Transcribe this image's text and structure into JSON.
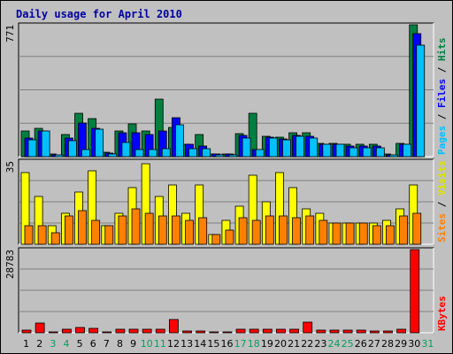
{
  "chart_data": {
    "type": "bar",
    "title": "Daily usage for April 2010",
    "days": [
      "1",
      "2",
      "3",
      "4",
      "5",
      "6",
      "7",
      "8",
      "9",
      "10",
      "11",
      "12",
      "13",
      "14",
      "15",
      "16",
      "17",
      "18",
      "19",
      "20",
      "21",
      "22",
      "23",
      "24",
      "25",
      "26",
      "27",
      "28",
      "29",
      "30",
      "31"
    ],
    "weekend_days": [
      "3",
      "4",
      "10",
      "11",
      "17",
      "18",
      "24",
      "25",
      "31"
    ],
    "panels": [
      {
        "name": "hits-files-pages",
        "scale_max_label": "771",
        "scale_max": 771,
        "right_label": [
          "Pages",
          "Files",
          "Hits"
        ],
        "series": [
          {
            "name": "Hits",
            "color": "#008040",
            "values": [
              150,
              166,
              18,
              128,
              252,
              225,
              25,
              150,
              191,
              150,
              338,
              170,
              75,
              130,
              15,
              15,
              135,
              254,
              120,
              115,
              140,
              140,
              80,
              80,
              70,
              70,
              70,
              18,
              80,
              771
            ]
          },
          {
            "name": "Files",
            "color": "#0000ff",
            "values": [
              110,
              152,
              10,
              110,
              199,
              165,
              20,
              140,
              140,
              128,
              150,
              230,
              70,
              60,
              15,
              15,
              125,
              40,
              115,
              105,
              125,
              120,
              75,
              75,
              60,
              60,
              60,
              10,
              75,
              720
            ]
          },
          {
            "name": "Pages",
            "color": "#00c0ff",
            "values": [
              100,
              152,
              10,
              95,
              40,
              160,
              15,
              85,
              40,
              40,
              48,
              185,
              48,
              48,
              12,
              12,
              110,
              40,
              110,
              100,
              120,
              110,
              75,
              75,
              50,
              50,
              50,
              10,
              70,
              650
            ]
          }
        ]
      },
      {
        "name": "visits-sites",
        "scale_max_label": "35",
        "scale_max": 35,
        "right_label": [
          "Sites",
          "Visits"
        ],
        "series": [
          {
            "name": "Visits",
            "color": "#ffff00",
            "values": [
              30,
              20,
              8,
              13,
              22,
              31,
              8,
              13,
              24,
              34,
              20,
              25,
              13,
              25,
              4,
              10,
              16,
              29,
              18,
              30,
              24,
              15,
              13,
              9,
              9,
              9,
              9,
              10,
              15,
              25
            ]
          },
          {
            "name": "Sites",
            "color": "#ff8000",
            "values": [
              8,
              8,
              5,
              12,
              14,
              10,
              8,
              12,
              15,
              13,
              12,
              12,
              10,
              11,
              4,
              6,
              11,
              10,
              12,
              12,
              11,
              12,
              10,
              9,
              9,
              9,
              8,
              8,
              12,
              13
            ]
          }
        ]
      },
      {
        "name": "kbytes",
        "scale_max_label": "28783",
        "scale_max": 28783,
        "right_label": [
          "KBytes"
        ],
        "series": [
          {
            "name": "KBytes",
            "color": "#ff0000",
            "values": [
              800,
              3500,
              400,
              1100,
              1700,
              1400,
              350,
              1100,
              1100,
              1100,
              1100,
              4500,
              600,
              600,
              200,
              200,
              1100,
              1100,
              1100,
              1100,
              1100,
              3800,
              800,
              800,
              800,
              800,
              600,
              600,
              1100,
              28783
            ]
          }
        ]
      }
    ]
  }
}
